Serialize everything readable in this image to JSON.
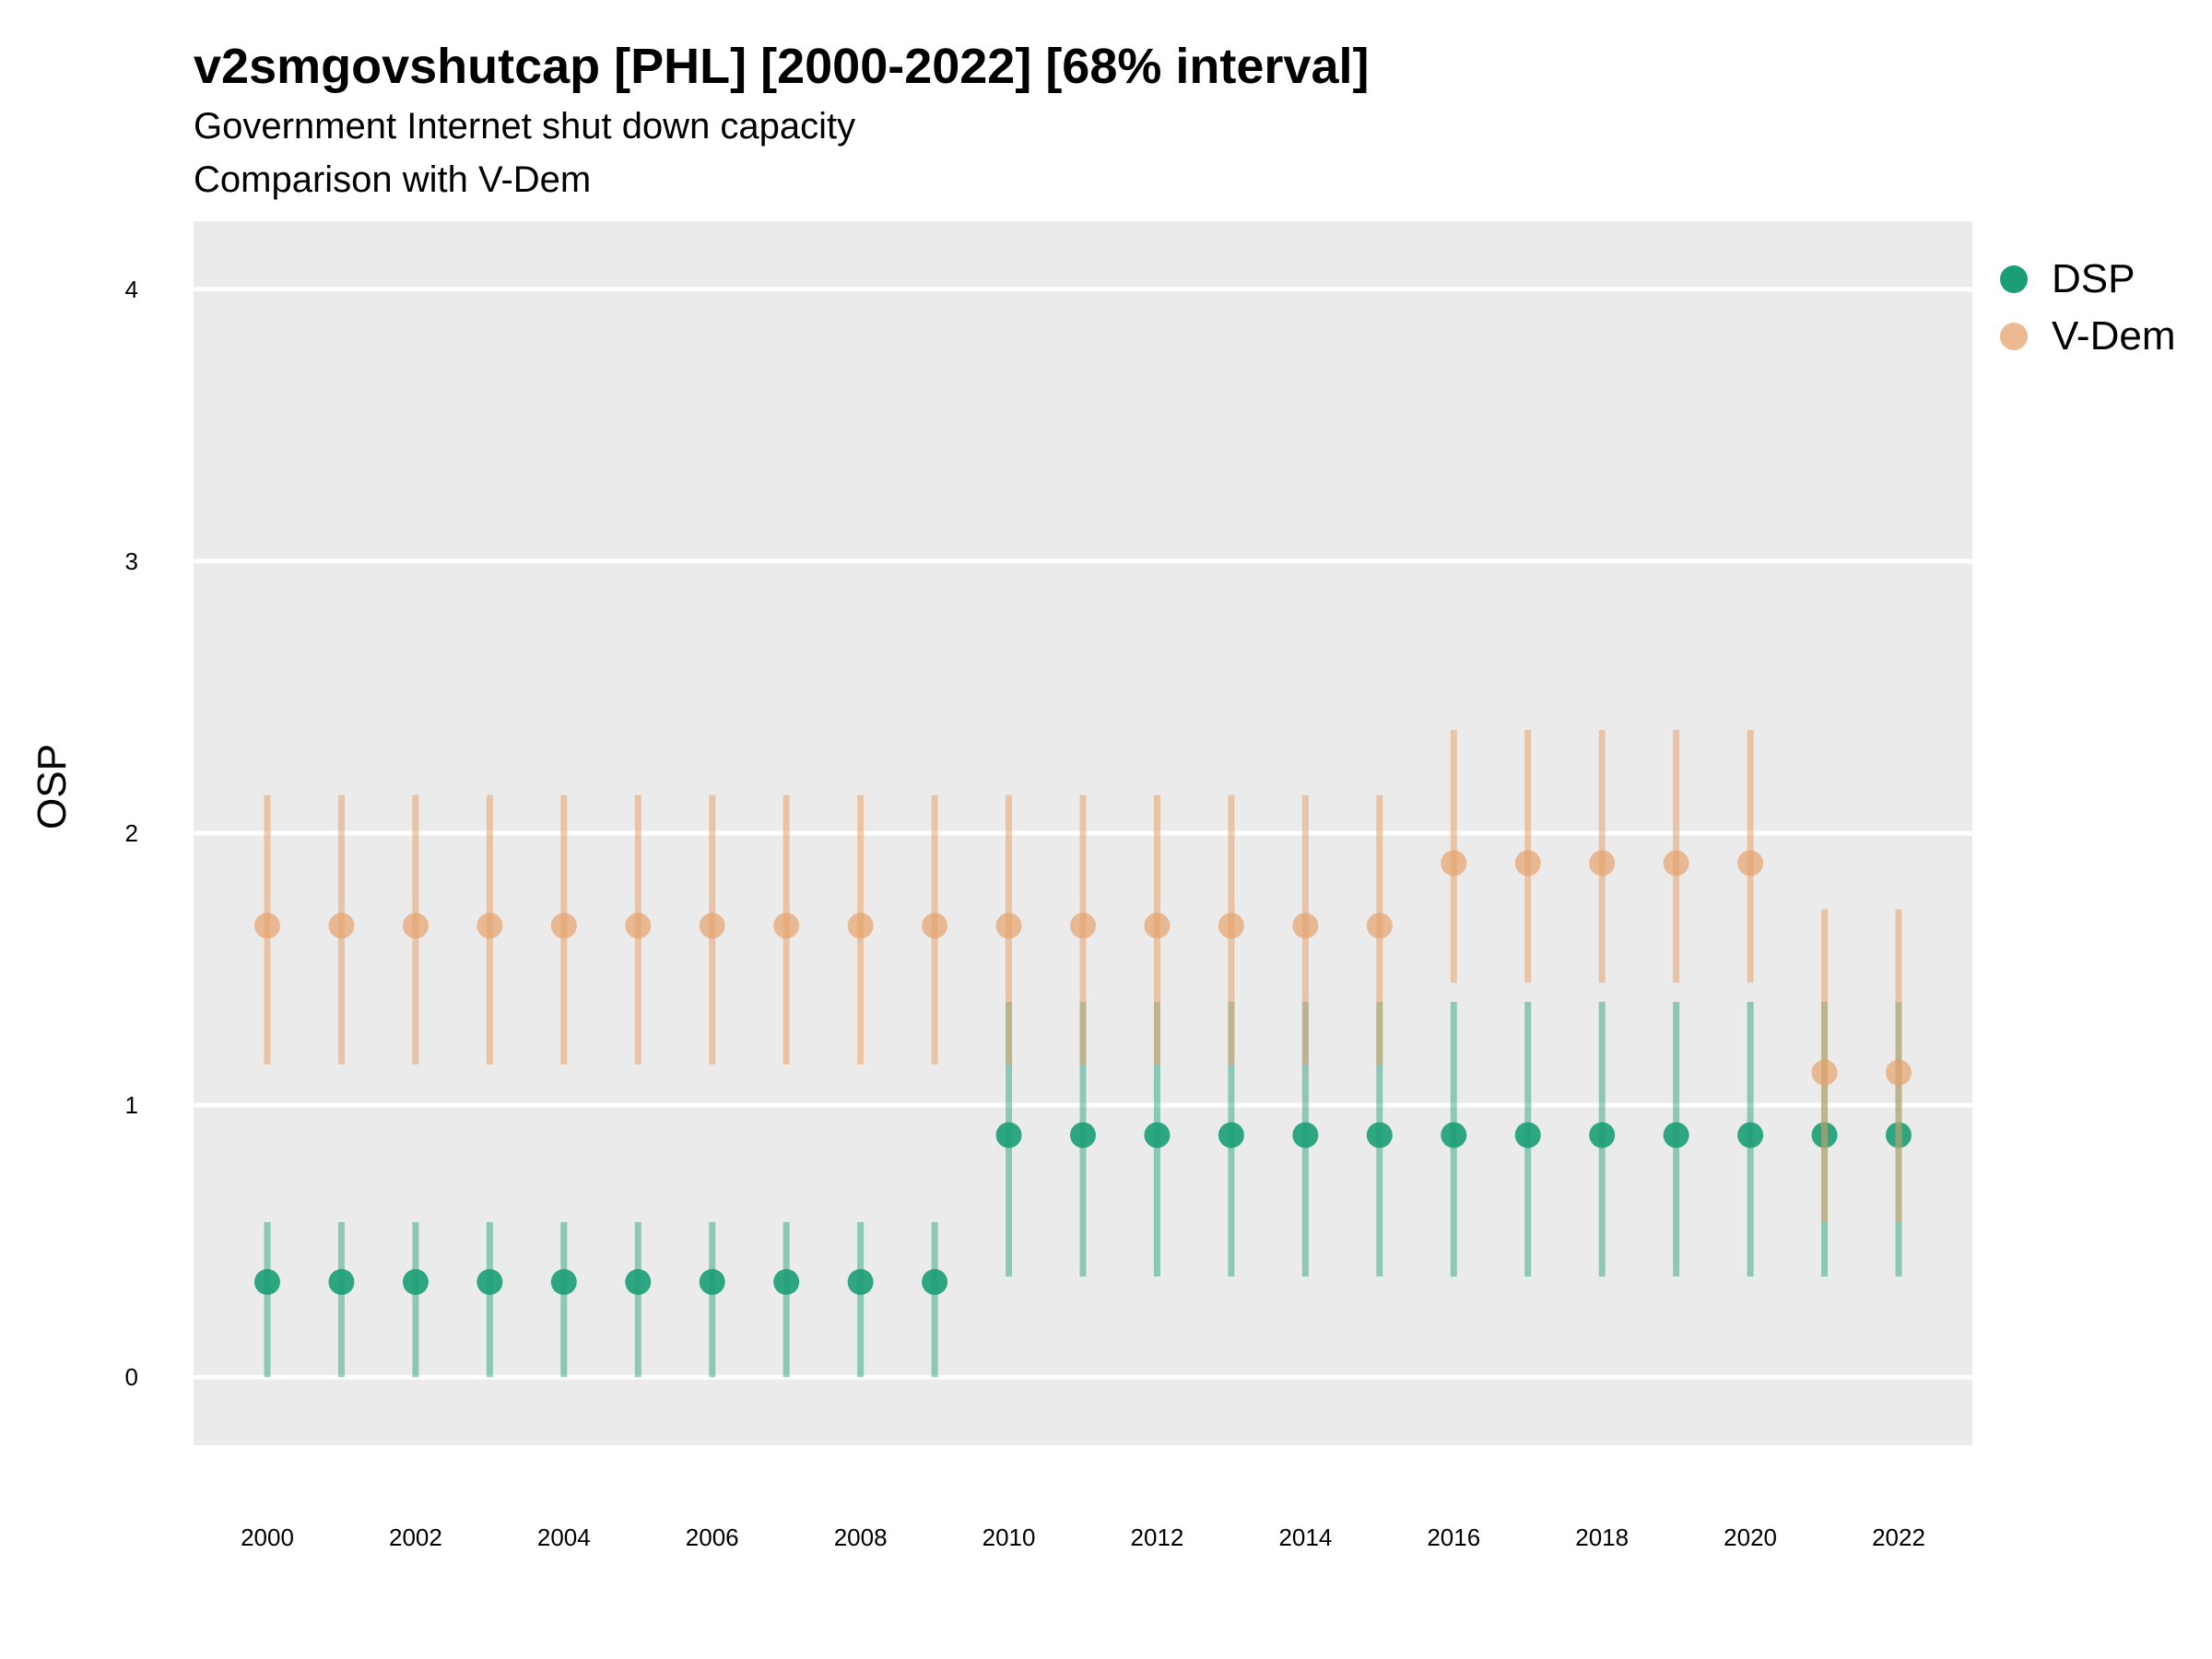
{
  "chart_data": {
    "type": "scatter",
    "title": "v2smgovshutcap [PHL] [2000-2022] [68% interval]",
    "subtitle_lines": [
      "Government Internet shut down capacity",
      "Comparison with V-Dem"
    ],
    "xlabel": "",
    "ylabel": "OSP",
    "x": [
      2000,
      2001,
      2002,
      2003,
      2004,
      2005,
      2006,
      2007,
      2008,
      2009,
      2010,
      2011,
      2012,
      2013,
      2014,
      2015,
      2016,
      2017,
      2018,
      2019,
      2020,
      2021,
      2022
    ],
    "x_tick_labels": [
      "2000",
      "2002",
      "2004",
      "2006",
      "2008",
      "2010",
      "2012",
      "2014",
      "2016",
      "2018",
      "2020",
      "2022"
    ],
    "y_tick_labels": [
      "0",
      "1",
      "2",
      "3",
      "4"
    ],
    "ylim": [
      -0.25,
      4.25
    ],
    "grid": true,
    "legend_position": "right",
    "series": [
      {
        "name": "DSP",
        "color": "#1b9e77",
        "values": [
          0.35,
          0.35,
          0.35,
          0.35,
          0.35,
          0.35,
          0.35,
          0.35,
          0.35,
          0.35,
          0.89,
          0.89,
          0.89,
          0.89,
          0.89,
          0.89,
          0.89,
          0.89,
          0.89,
          0.89,
          0.89,
          0.89,
          0.89
        ],
        "lower": [
          0.0,
          0.0,
          0.0,
          0.0,
          0.0,
          0.0,
          0.0,
          0.0,
          0.0,
          0.0,
          0.37,
          0.37,
          0.37,
          0.37,
          0.37,
          0.37,
          0.37,
          0.37,
          0.37,
          0.37,
          0.37,
          0.37,
          0.37
        ],
        "upper": [
          0.57,
          0.57,
          0.57,
          0.57,
          0.57,
          0.57,
          0.57,
          0.57,
          0.57,
          0.57,
          1.38,
          1.38,
          1.38,
          1.38,
          1.38,
          1.38,
          1.38,
          1.38,
          1.38,
          1.38,
          1.38,
          1.38,
          1.38
        ]
      },
      {
        "name": "V-Dem",
        "color": "#e6a26b",
        "values": [
          1.66,
          1.66,
          1.66,
          1.66,
          1.66,
          1.66,
          1.66,
          1.66,
          1.66,
          1.66,
          1.66,
          1.66,
          1.66,
          1.66,
          1.66,
          1.66,
          1.89,
          1.89,
          1.89,
          1.89,
          1.89,
          1.12,
          1.12
        ],
        "lower": [
          1.15,
          1.15,
          1.15,
          1.15,
          1.15,
          1.15,
          1.15,
          1.15,
          1.15,
          1.15,
          1.15,
          1.15,
          1.15,
          1.15,
          1.15,
          1.15,
          1.45,
          1.45,
          1.45,
          1.45,
          1.45,
          0.57,
          0.57
        ],
        "upper": [
          2.14,
          2.14,
          2.14,
          2.14,
          2.14,
          2.14,
          2.14,
          2.14,
          2.14,
          2.14,
          2.14,
          2.14,
          2.14,
          2.14,
          2.14,
          2.14,
          2.38,
          2.38,
          2.38,
          2.38,
          2.38,
          1.72,
          1.72
        ]
      }
    ]
  },
  "legend": [
    {
      "label": "DSP",
      "color": "#1b9e77"
    },
    {
      "label": "V-Dem",
      "color": "#e6a26b"
    }
  ]
}
